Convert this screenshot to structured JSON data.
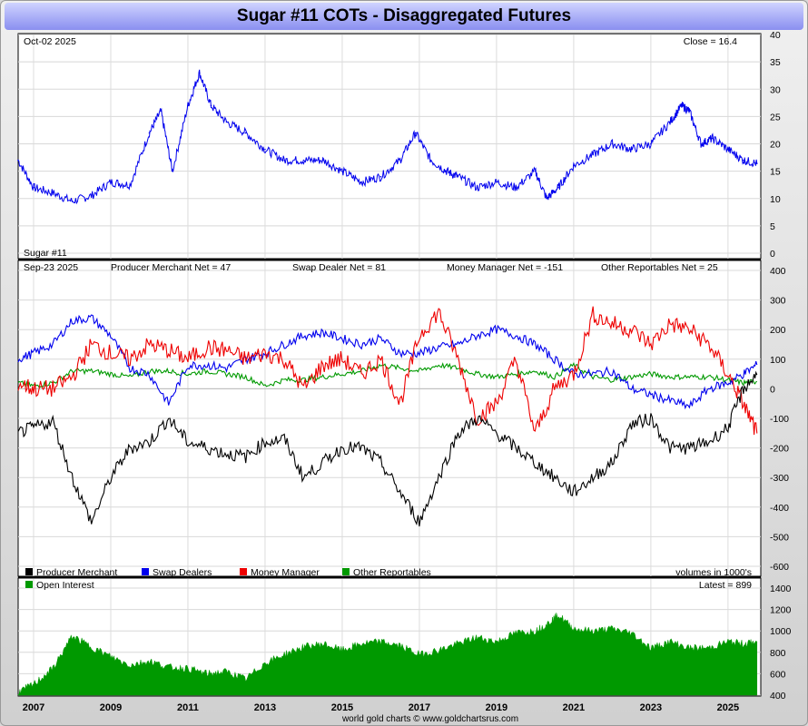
{
  "title": "Sugar #11 COTs - Disaggregated Futures",
  "footer": "world gold charts © www.goldchartsrus.com",
  "colors": {
    "price": "#0000ee",
    "producer": "#000000",
    "swap": "#0000ee",
    "money": "#ee0000",
    "other": "#009900",
    "oi": "#009900"
  },
  "chart_data": [
    {
      "type": "line",
      "panel": "price",
      "date_label": "Oct-02  2025",
      "close_label": "Close = 16.4",
      "series_label": "Sugar #11",
      "ylim": [
        0,
        40
      ],
      "yticks": [
        0,
        5,
        10,
        15,
        20,
        25,
        30,
        35,
        40
      ],
      "x": [
        2006.6,
        2007.0,
        2007.5,
        2008.0,
        2008.5,
        2009.0,
        2009.5,
        2010.0,
        2010.3,
        2010.6,
        2011.0,
        2011.3,
        2011.6,
        2012.0,
        2012.5,
        2013.0,
        2013.5,
        2014.0,
        2014.5,
        2015.0,
        2015.5,
        2016.0,
        2016.5,
        2016.9,
        2017.3,
        2017.7,
        2018.0,
        2018.5,
        2019.0,
        2019.5,
        2020.0,
        2020.3,
        2020.6,
        2021.0,
        2021.5,
        2022.0,
        2022.5,
        2023.0,
        2023.5,
        2023.8,
        2024.0,
        2024.3,
        2024.6,
        2025.0,
        2025.4,
        2025.75
      ],
      "values": [
        17,
        12,
        11,
        9.5,
        10.5,
        13,
        12.5,
        22,
        26,
        15,
        27,
        33,
        27,
        24,
        22,
        19,
        17,
        17,
        17,
        15,
        13,
        14,
        17,
        22,
        17,
        15,
        14,
        12,
        13,
        12,
        15,
        10,
        12,
        16,
        18,
        20,
        19,
        20,
        24,
        27,
        26,
        20,
        21,
        19,
        17,
        16.4
      ]
    },
    {
      "type": "line",
      "panel": "cot",
      "date_label": "Sep-23  2025",
      "ylim": [
        -600,
        400
      ],
      "yticks": [
        -600,
        -500,
        -400,
        -300,
        -200,
        -100,
        0,
        100,
        200,
        300,
        400
      ],
      "headers": [
        "Producer Merchant Net = 47",
        "Swap Dealer Net = 81",
        "Money Manager Net = -151",
        "Other Reportables Net = 25"
      ],
      "x": [
        2006.6,
        2007.0,
        2007.5,
        2008.0,
        2008.5,
        2009.0,
        2009.5,
        2010.0,
        2010.5,
        2011.0,
        2011.5,
        2012.0,
        2012.5,
        2013.0,
        2013.5,
        2014.0,
        2014.5,
        2015.0,
        2015.5,
        2016.0,
        2016.5,
        2017.0,
        2017.5,
        2018.0,
        2018.5,
        2019.0,
        2019.5,
        2020.0,
        2020.5,
        2021.0,
        2021.5,
        2022.0,
        2022.5,
        2023.0,
        2023.5,
        2024.0,
        2024.5,
        2025.0,
        2025.4,
        2025.75
      ],
      "series": [
        {
          "name": "Producer Merchant",
          "values": [
            -150,
            -130,
            -110,
            -300,
            -450,
            -300,
            -200,
            -180,
            -100,
            -180,
            -200,
            -220,
            -230,
            -180,
            -170,
            -300,
            -250,
            -200,
            -200,
            -250,
            -350,
            -450,
            -300,
            -150,
            -100,
            -150,
            -200,
            -250,
            -300,
            -350,
            -300,
            -250,
            -120,
            -100,
            -200,
            -200,
            -180,
            -130,
            0,
            47
          ]
        },
        {
          "name": "Swap Dealers",
          "values": [
            100,
            120,
            150,
            230,
            240,
            180,
            70,
            50,
            -50,
            80,
            80,
            70,
            100,
            120,
            150,
            180,
            190,
            170,
            150,
            170,
            120,
            120,
            140,
            150,
            180,
            200,
            180,
            150,
            100,
            50,
            50,
            60,
            0,
            -20,
            -40,
            -60,
            0,
            20,
            50,
            81
          ]
        },
        {
          "name": "Money Manager",
          "values": [
            20,
            0,
            0,
            40,
            150,
            120,
            100,
            150,
            130,
            100,
            140,
            130,
            100,
            120,
            100,
            0,
            80,
            100,
            50,
            100,
            -50,
            180,
            260,
            100,
            -100,
            -50,
            100,
            -150,
            0,
            50,
            250,
            220,
            200,
            150,
            220,
            200,
            150,
            50,
            -50,
            -151
          ]
        },
        {
          "name": "Other Reportables",
          "values": [
            20,
            10,
            20,
            60,
            60,
            50,
            40,
            60,
            60,
            50,
            60,
            50,
            40,
            10,
            30,
            30,
            40,
            50,
            60,
            80,
            70,
            60,
            80,
            70,
            50,
            40,
            50,
            60,
            40,
            80,
            40,
            30,
            40,
            50,
            40,
            40,
            40,
            30,
            20,
            25
          ]
        }
      ]
    },
    {
      "type": "area",
      "panel": "open_interest",
      "legend_label": "Open Interest",
      "volumes_label": "volumes in 1000's",
      "latest_label": "Latest = 899",
      "ylim": [
        400,
        1400
      ],
      "yticks": [
        400,
        600,
        800,
        1000,
        1200,
        1400
      ],
      "x": [
        2006.6,
        2007.0,
        2007.5,
        2008.0,
        2008.5,
        2009.0,
        2009.5,
        2010.0,
        2010.5,
        2011.0,
        2011.5,
        2012.0,
        2012.5,
        2013.0,
        2013.5,
        2014.0,
        2014.5,
        2015.0,
        2015.5,
        2016.0,
        2016.5,
        2017.0,
        2017.5,
        2018.0,
        2018.5,
        2019.0,
        2019.5,
        2020.0,
        2020.3,
        2020.6,
        2021.0,
        2021.5,
        2022.0,
        2022.5,
        2023.0,
        2023.5,
        2024.0,
        2024.5,
        2025.0,
        2025.4,
        2025.75
      ],
      "values": [
        430,
        500,
        650,
        950,
        850,
        760,
        680,
        720,
        660,
        650,
        600,
        620,
        550,
        700,
        780,
        850,
        880,
        820,
        880,
        900,
        860,
        780,
        820,
        880,
        940,
        900,
        980,
        1000,
        1060,
        1150,
        1020,
        1000,
        1020,
        980,
        840,
        900,
        840,
        840,
        900,
        880,
        899
      ]
    }
  ],
  "xaxis": {
    "years": [
      "2007",
      "2009",
      "2011",
      "2013",
      "2015",
      "2017",
      "2019",
      "2021",
      "2023",
      "2025"
    ],
    "range": [
      2006.6,
      2025.85
    ]
  },
  "legend": [
    {
      "name": "Producer Merchant",
      "color": "#000000"
    },
    {
      "name": "Swap Dealers",
      "color": "#0000ee"
    },
    {
      "name": "Money Manager",
      "color": "#ee0000"
    },
    {
      "name": "Other Reportables",
      "color": "#009900"
    }
  ]
}
